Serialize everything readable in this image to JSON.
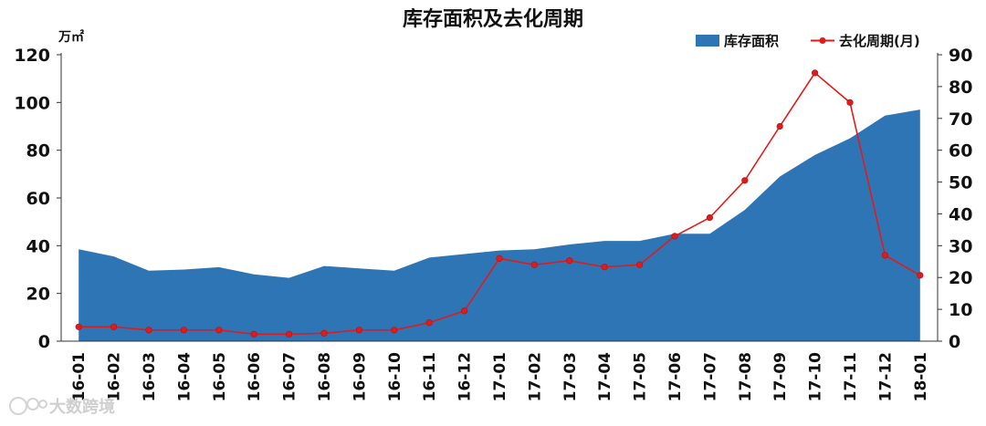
{
  "chart_data": {
    "type": "area+line",
    "title": "库存面积及去化周期",
    "y_left_unit": "万㎡",
    "categories": [
      "16-01",
      "16-02",
      "16-03",
      "16-04",
      "16-05",
      "16-06",
      "16-07",
      "16-08",
      "16-09",
      "16-10",
      "16-11",
      "16-12",
      "17-01",
      "17-02",
      "17-03",
      "17-04",
      "17-05",
      "17-06",
      "17-07",
      "17-08",
      "17-09",
      "17-10",
      "17-11",
      "17-12",
      "18-01"
    ],
    "series": [
      {
        "name": "库存面积",
        "type": "area",
        "axis": "left",
        "color": "#2E75B6",
        "values": [
          38.5,
          35.5,
          29.5,
          30,
          31,
          28,
          26.5,
          31.5,
          30.5,
          29.5,
          35,
          36.5,
          38,
          38.5,
          40.5,
          42,
          42,
          45,
          45,
          55,
          69,
          78,
          85,
          94.5,
          97
        ]
      },
      {
        "name": "去化周期(月)",
        "type": "line",
        "axis": "right",
        "color": "#E01B1B",
        "values": [
          4.5,
          4.5,
          3.5,
          3.5,
          3.5,
          2.2,
          2.2,
          2.5,
          3.5,
          3.5,
          5.8,
          9.5,
          26,
          24,
          25.3,
          23.3,
          24,
          33,
          38.8,
          50.5,
          67.5,
          84.3,
          75,
          27,
          20.7
        ]
      }
    ],
    "y_left": {
      "min": 0,
      "max": 120,
      "ticks": [
        "0",
        "20",
        "40",
        "60",
        "80",
        "100",
        "120"
      ]
    },
    "y_right": {
      "min": 0,
      "max": 90,
      "ticks": [
        "0",
        "10",
        "20",
        "30",
        "40",
        "50",
        "60",
        "70",
        "80",
        "90"
      ]
    },
    "legend_position": "top-right",
    "grid": false
  },
  "watermark": {
    "text": "大数跨境"
  }
}
